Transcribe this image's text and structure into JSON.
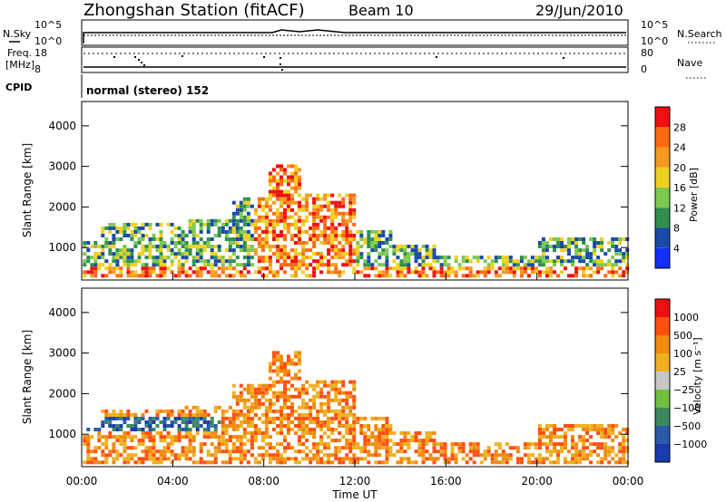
{
  "header": {
    "station": "Zhongshan Station (fitACF)",
    "beam": "Beam 10",
    "date": "29/Jun/2010"
  },
  "top_panels": {
    "nsky_label": "N.Sky",
    "nsky_ticks": [
      "10^5",
      "10^0"
    ],
    "nsearch_label": "N.Search",
    "nsearch_ticks": [
      "10^5",
      "10^0"
    ],
    "freq_label_1": "Freq.",
    "freq_label_2": "[MHz]",
    "freq_ticks": [
      "18",
      "8"
    ],
    "nave_label": "Nave",
    "nave_ticks": [
      "80",
      "0"
    ],
    "cpid_label": "CPID",
    "cpid_text": "normal (stereo) 152"
  },
  "colors": {
    "power": [
      "#1030ff",
      "#1a4aa8",
      "#2f8f50",
      "#7ec850",
      "#f0d020",
      "#f59a20",
      "#ff6a10",
      "#ee1010"
    ],
    "velocity": [
      "#1a3ab0",
      "#2a5aa8",
      "#3a8a60",
      "#70c040",
      "#c8c8c8",
      "#f0b020",
      "#f08a10",
      "#ff5010",
      "#ee1010"
    ]
  },
  "chart_data": [
    {
      "type": "heatmap",
      "name": "power",
      "ylabel": "Slant Range [km]",
      "yticks": [
        "4000",
        "3000",
        "2000",
        "1000"
      ],
      "ylim": [
        200,
        4600
      ],
      "xlim_hours": [
        0,
        24
      ],
      "xticks": [
        "00:00",
        "04:00",
        "08:00",
        "12:00",
        "16:00",
        "20:00",
        "00:00"
      ],
      "colorbar_label": "Power [dB]",
      "colorbar_ticks": [
        "28",
        "24",
        "20",
        "16",
        "12",
        "8",
        "4"
      ]
    },
    {
      "type": "heatmap",
      "name": "velocity",
      "ylabel": "Slant Range [km]",
      "yticks": [
        "4000",
        "3000",
        "2000",
        "1000"
      ],
      "ylim": [
        200,
        4600
      ],
      "xlim_hours": [
        0,
        24
      ],
      "xticks": [
        "00:00",
        "04:00",
        "08:00",
        "12:00",
        "16:00",
        "20:00",
        "00:00"
      ],
      "xlabel": "Time UT",
      "colorbar_label": "Velocity [m s⁻¹]",
      "colorbar_ticks": [
        "1000",
        "500",
        "100",
        "25",
        "−25",
        "−100",
        "−500",
        "−1000"
      ]
    }
  ]
}
